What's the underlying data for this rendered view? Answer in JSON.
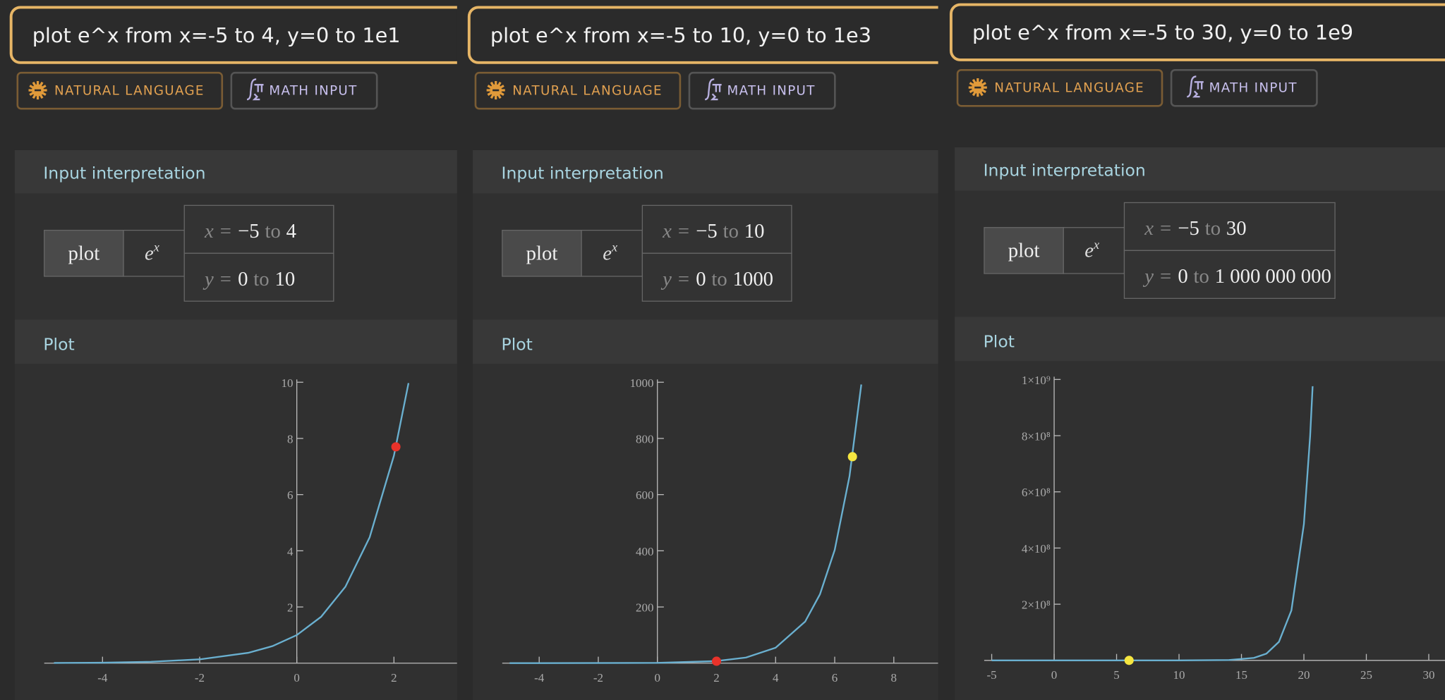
{
  "panels": [
    {
      "query": "plot e^x from x=-5 to 4, y=0 to 1e1",
      "buttons": [
        "NATURAL LANGUAGE",
        "MATH INPUT"
      ],
      "interpretation_title": "Input interpretation",
      "interpretation": {
        "command": "plot",
        "function_base": "e",
        "function_exponent": "x",
        "x_range": [
          "x =",
          "−5",
          "to",
          "4"
        ],
        "y_range": [
          "y =",
          "0",
          "to",
          "10"
        ]
      },
      "plot_title": "Plot",
      "plot": {
        "type": "line",
        "x": [
          -5,
          -4,
          -3,
          -2,
          -1,
          -0.5,
          0,
          0.5,
          1,
          1.5,
          2,
          2.3
        ],
        "values": [
          0.0067,
          0.018,
          0.05,
          0.135,
          0.368,
          0.607,
          1,
          1.65,
          2.72,
          4.48,
          7.39,
          9.97
        ],
        "color": "#6ab0d0",
        "points": [
          {
            "x": 2.04,
            "y": 7.7,
            "color": "#e8322a"
          }
        ],
        "xlim": [
          -5.2,
          3.3
        ],
        "ylim": [
          0,
          10
        ],
        "xticks": [
          -4,
          -2,
          0,
          2
        ],
        "yticks": [
          2,
          4,
          6,
          8,
          10
        ]
      }
    },
    {
      "query": "plot e^x from x=-5 to 10, y=0 to 1e3",
      "buttons": [
        "NATURAL LANGUAGE",
        "MATH INPUT"
      ],
      "interpretation_title": "Input interpretation",
      "interpretation": {
        "command": "plot",
        "function_base": "e",
        "function_exponent": "x",
        "x_range": [
          "x =",
          "−5",
          "to",
          "10"
        ],
        "y_range": [
          "y =",
          "0",
          "to",
          "1000"
        ]
      },
      "plot_title": "Plot",
      "plot": {
        "type": "line",
        "x": [
          -5,
          0,
          2,
          3,
          4,
          5,
          5.5,
          6,
          6.5,
          6.9
        ],
        "values": [
          0.0067,
          1,
          7.4,
          20,
          55,
          148,
          245,
          403,
          665,
          992
        ],
        "color": "#6ab0d0",
        "points": [
          {
            "x": 2,
            "y": 7,
            "color": "#e8322a"
          },
          {
            "x": 6.6,
            "y": 735,
            "color": "#f5e640"
          }
        ],
        "xlim": [
          -5.25,
          9.5
        ],
        "ylim": [
          0,
          1000
        ],
        "xticks": [
          -4,
          -2,
          0,
          2,
          4,
          6,
          8
        ],
        "yticks": [
          200,
          400,
          600,
          800,
          1000
        ]
      }
    },
    {
      "query": "plot e^x from x=-5 to 30, y=0 to 1e9",
      "buttons": [
        "NATURAL LANGUAGE",
        "MATH INPUT"
      ],
      "interpretation_title": "Input interpretation",
      "interpretation": {
        "command": "plot",
        "function_base": "e",
        "function_exponent": "x",
        "x_range": [
          "x =",
          "−5",
          "to",
          "30"
        ],
        "y_range": [
          "y =",
          "0",
          "to",
          "1 000 000 000"
        ]
      },
      "plot_title": "Plot",
      "plot": {
        "type": "line",
        "x": [
          -5,
          5,
          10,
          14,
          16,
          17,
          18,
          19,
          20,
          20.5,
          20.7
        ],
        "values": [
          0.0067,
          148,
          22026,
          1200000,
          8900000,
          24000000,
          66000000,
          178000000,
          485000000,
          799000000,
          976000000
        ],
        "color": "#6ab0d0",
        "points": [
          {
            "x": 6,
            "y": 0,
            "color": "#f5e640"
          }
        ],
        "xlim": [
          -5.6,
          31.3
        ],
        "ylim": [
          0,
          1000000000
        ],
        "xticks": [
          -5,
          0,
          5,
          10,
          15,
          20,
          25,
          30
        ],
        "yticks": [
          {
            "value": 200000000,
            "label": "2×10⁸"
          },
          {
            "value": 400000000,
            "label": "4×10⁸"
          },
          {
            "value": 600000000,
            "label": "6×10⁸"
          },
          {
            "value": 800000000,
            "label": "8×10⁸"
          },
          {
            "value": 1000000000,
            "label": "1×10⁹"
          }
        ]
      }
    }
  ]
}
